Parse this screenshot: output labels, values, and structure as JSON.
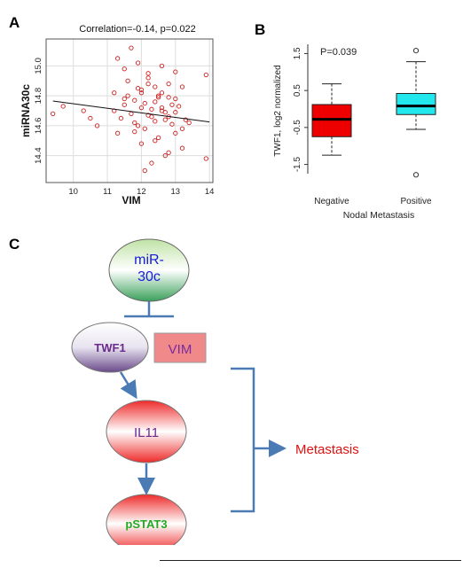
{
  "panels": {
    "a": "A",
    "b": "B",
    "c": "C"
  },
  "chart_data": [
    {
      "type": "scatter",
      "title": "Correlation=-0.14, p=0.022",
      "xlabel": "VIM",
      "ylabel": "miRNA30c",
      "xlim": [
        9.2,
        14.1
      ],
      "ylim": [
        14.22,
        15.18
      ],
      "x_ticks": [
        10,
        11,
        12,
        13,
        14
      ],
      "y_ticks": [
        14.4,
        14.6,
        14.8,
        15.0
      ],
      "grid": true,
      "point_color": "#cc2222",
      "trend_line": {
        "x": [
          9.4,
          14.0
        ],
        "y": [
          14.765,
          14.625
        ]
      },
      "points": {
        "x": [
          9.4,
          9.7,
          10.3,
          10.5,
          10.7,
          11.2,
          11.3,
          11.5,
          11.6,
          11.8,
          11.9,
          12.0,
          12.1,
          12.2,
          12.3,
          12.4,
          12.5,
          12.6,
          12.7,
          12.8,
          12.9,
          13.0,
          13.2,
          13.4,
          13.9,
          13.9,
          11.2,
          11.4,
          11.5,
          11.6,
          11.7,
          11.8,
          11.9,
          12.0,
          12.1,
          12.2,
          12.3,
          12.4,
          12.5,
          12.6,
          12.7,
          12.8,
          12.9,
          13.0,
          13.1,
          13.2,
          13.3,
          11.3,
          11.5,
          11.7,
          11.9,
          12.0,
          12.2,
          12.4,
          12.6,
          12.8,
          13.0,
          13.2,
          12.1,
          12.3,
          12.5,
          12.7,
          11.8,
          12.0,
          12.2,
          12.4,
          12.6,
          12.8,
          13.0
        ],
        "y": [
          14.68,
          14.73,
          14.7,
          14.65,
          14.6,
          14.82,
          14.55,
          14.78,
          14.9,
          14.62,
          14.85,
          14.72,
          14.58,
          14.92,
          14.66,
          14.76,
          14.8,
          14.7,
          14.64,
          14.88,
          14.74,
          14.69,
          14.86,
          14.62,
          14.94,
          14.38,
          14.7,
          14.65,
          14.74,
          14.8,
          14.68,
          14.77,
          14.6,
          14.82,
          14.75,
          14.67,
          14.71,
          14.63,
          14.79,
          14.72,
          14.69,
          14.66,
          14.61,
          14.78,
          14.73,
          14.58,
          14.64,
          15.05,
          14.98,
          15.12,
          15.02,
          14.48,
          14.95,
          14.5,
          15.0,
          14.42,
          14.96,
          14.45,
          14.3,
          14.35,
          14.52,
          14.4,
          14.56,
          14.84,
          14.88,
          14.86,
          14.82,
          14.79,
          14.55
        ]
      }
    },
    {
      "type": "box",
      "title": "",
      "xlabel": "Nodal Metastasis",
      "ylabel": "TWF1, log2 normalized",
      "ylim": [
        -1.75,
        1.75
      ],
      "y_ticks": [
        -1.5,
        -0.5,
        0.5,
        1.5
      ],
      "annotation": "P=0.039",
      "categories": [
        "Negative",
        "Positive"
      ],
      "boxes": [
        {
          "name": "Negative",
          "whisker_low": -1.25,
          "q1": -0.75,
          "median": -0.28,
          "q3": 0.12,
          "whisker_high": 0.68,
          "outliers": [],
          "color": "#ee0000"
        },
        {
          "name": "Positive",
          "whisker_low": -0.55,
          "q1": -0.15,
          "median": 0.08,
          "q3": 0.42,
          "whisker_high": 1.28,
          "outliers": [
            1.58,
            -1.78
          ],
          "color": "#22e8ee"
        }
      ]
    }
  ],
  "diagram": {
    "nodes": {
      "mir": "miR-\n30c",
      "twf1": "TWF1",
      "vim": "VIM",
      "il11": "IL11",
      "pstat3": "pSTAT3",
      "metastasis": "Metastasis"
    },
    "colors": {
      "mir_text": "#1a1adc",
      "twf1_text": "#6a2a8c",
      "vim_fill": "#f08a8a",
      "vim_text": "#7a2aa0",
      "il11_text": "#6a2a8c",
      "pstat3_text": "#22aa22",
      "metastasis_text": "#dd1111",
      "arrow": "#4a7bb5"
    }
  }
}
